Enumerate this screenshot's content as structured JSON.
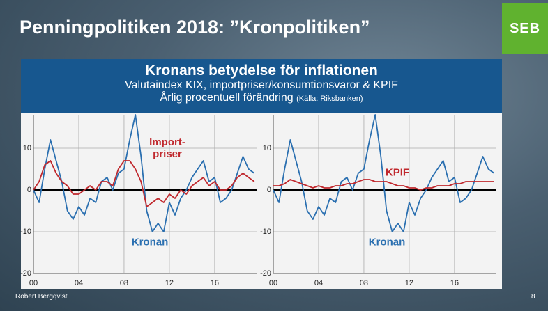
{
  "title": "Penningpolitiken 2018: ”Kronpolitiken”",
  "logo": "SEB",
  "header": {
    "title": "Kronans betydelse för inflationen",
    "subtitle": "Valutaindex KIX, importpriser/konsumtionsvaror & KPIF",
    "unit": "Årlig procentuell förändring",
    "source": "(Källa: Riksbanken)"
  },
  "footer": {
    "author": "Robert Bergqvist",
    "page": "8"
  },
  "chart_data": [
    {
      "type": "line",
      "grid": true,
      "xlim": [
        0,
        19.7
      ],
      "ylim": [
        -20,
        18
      ],
      "xticks": [
        {
          "value": 0,
          "label": "00"
        },
        {
          "value": 4,
          "label": "04"
        },
        {
          "value": 8,
          "label": "08"
        },
        {
          "value": 12,
          "label": "12"
        },
        16
      ],
      "yticks": [
        10,
        0,
        -10,
        -20
      ],
      "x": [
        0,
        0.5,
        1,
        1.5,
        2,
        2.5,
        3,
        3.5,
        4,
        4.5,
        5,
        5.5,
        6,
        6.5,
        7,
        7.5,
        8,
        8.5,
        9,
        9.5,
        10,
        10.5,
        11,
        11.5,
        12,
        12.5,
        13,
        13.5,
        14,
        14.5,
        15,
        15.5,
        16,
        16.5,
        17,
        17.5,
        18,
        18.5,
        19,
        19.5
      ],
      "series": [
        {
          "name": "Kronan",
          "color": "#2a6fb0",
          "values": [
            0,
            -3,
            5,
            12,
            7,
            2,
            -5,
            -7,
            -4,
            -6,
            -2,
            -3,
            2,
            3,
            0,
            4,
            5,
            12,
            18,
            8,
            -5,
            -10,
            -8,
            -10,
            -3,
            -6,
            -2,
            0,
            3,
            5,
            7,
            2,
            3,
            -3,
            -2,
            0,
            4,
            8,
            5,
            4
          ]
        },
        {
          "name": "Import-\npriser",
          "color": "#c0282d",
          "values": [
            0,
            2,
            6,
            7,
            4,
            2,
            1,
            -1,
            -1,
            0,
            1,
            0,
            2,
            2,
            1,
            5,
            7,
            7,
            5,
            2,
            -4,
            -3,
            -2,
            -3,
            -1,
            -2,
            0,
            -1,
            1,
            2,
            3,
            1,
            2,
            0,
            0,
            1,
            3,
            4,
            3,
            2
          ]
        }
      ]
    },
    {
      "type": "line",
      "grid": true,
      "xlim": [
        0,
        19.7
      ],
      "ylim": [
        -20,
        18
      ],
      "xticks": [
        {
          "value": 0,
          "label": "00"
        },
        {
          "value": 4,
          "label": "04"
        },
        {
          "value": 8,
          "label": "08"
        },
        {
          "value": 12,
          "label": "12"
        },
        16
      ],
      "yticks": [
        10,
        0,
        -10,
        -20
      ],
      "x": [
        0,
        0.5,
        1,
        1.5,
        2,
        2.5,
        3,
        3.5,
        4,
        4.5,
        5,
        5.5,
        6,
        6.5,
        7,
        7.5,
        8,
        8.5,
        9,
        9.5,
        10,
        10.5,
        11,
        11.5,
        12,
        12.5,
        13,
        13.5,
        14,
        14.5,
        15,
        15.5,
        16,
        16.5,
        17,
        17.5,
        18,
        18.5,
        19,
        19.5
      ],
      "series": [
        {
          "name": "Kronan",
          "color": "#2a6fb0",
          "values": [
            0,
            -3,
            5,
            12,
            7,
            2,
            -5,
            -7,
            -4,
            -6,
            -2,
            -3,
            2,
            3,
            0,
            4,
            5,
            12,
            18,
            8,
            -5,
            -10,
            -8,
            -10,
            -3,
            -6,
            -2,
            0,
            3,
            5,
            7,
            2,
            3,
            -3,
            -2,
            0,
            4,
            8,
            5,
            4
          ]
        },
        {
          "name": "KPIF",
          "color": "#c0282d",
          "values": [
            1,
            1,
            1.5,
            2.5,
            2,
            1.5,
            1,
            0.5,
            1,
            0.5,
            0.5,
            1,
            1,
            1.5,
            1.5,
            2,
            2.5,
            2.5,
            2,
            2,
            2,
            1.5,
            1,
            1,
            0.5,
            0.5,
            0,
            0.5,
            0.5,
            1,
            1,
            1,
            1.5,
            1.5,
            2,
            2,
            2,
            2,
            2,
            2
          ]
        }
      ]
    }
  ]
}
